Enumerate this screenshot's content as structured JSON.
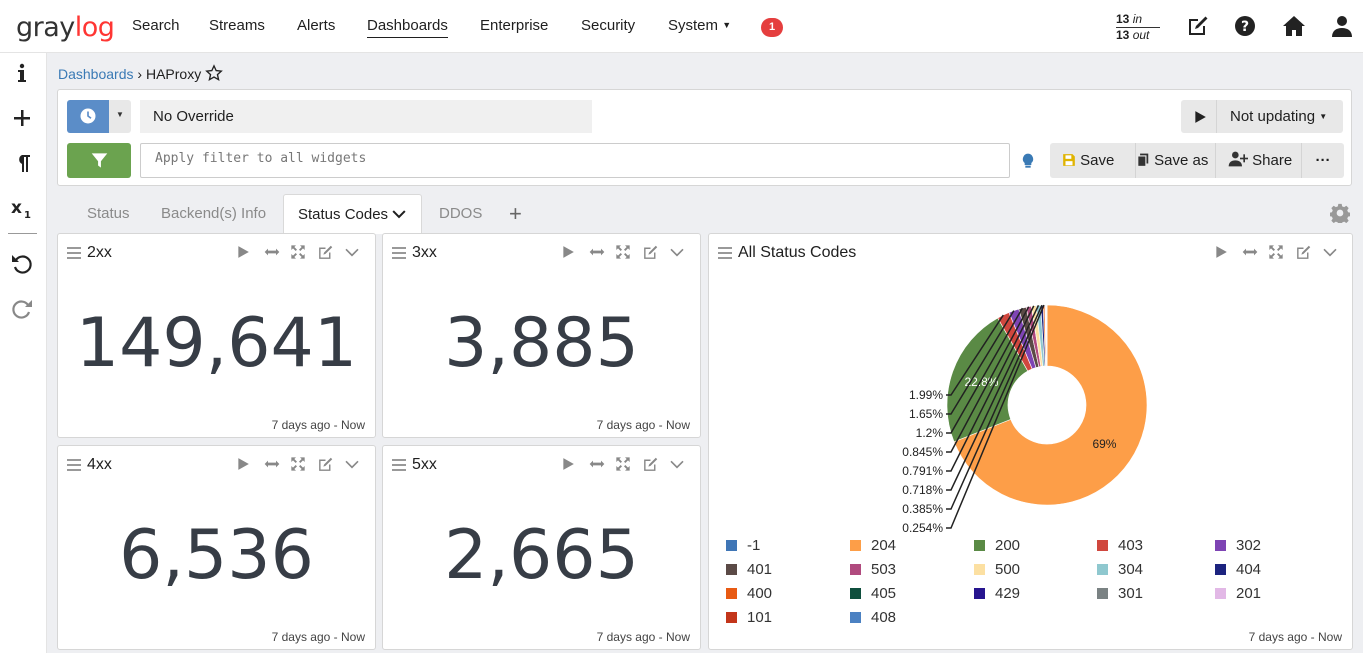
{
  "nav": {
    "logo": "graylog",
    "links": [
      "Search",
      "Streams",
      "Alerts",
      "Dashboards",
      "Enterprise",
      "Security",
      "System"
    ],
    "notification_count": "1",
    "throughput_in": "13",
    "throughput_in_label": "in",
    "throughput_out": "13",
    "throughput_out_label": "out"
  },
  "breadcrumb": {
    "parent": "Dashboards",
    "separator": "›",
    "current": "HAProxy"
  },
  "query": {
    "timerange": "No Override",
    "refresh": "Not updating",
    "filter_placeholder": "Apply filter to all widgets",
    "save": "Save",
    "save_as": "Save as",
    "share": "Share",
    "more": "···"
  },
  "tabs": [
    {
      "label": "Status"
    },
    {
      "label": "Backend(s) Info"
    },
    {
      "label": "Status Codes"
    },
    {
      "label": "DDOS"
    }
  ],
  "tabs_add": "+",
  "widgets": [
    {
      "title": "2xx",
      "value": "149,641",
      "range": "7 days ago - Now"
    },
    {
      "title": "3xx",
      "value": "3,885",
      "range": "7 days ago - Now"
    },
    {
      "title": "4xx",
      "value": "6,536",
      "range": "7 days ago - Now"
    },
    {
      "title": "5xx",
      "value": "2,665",
      "range": "7 days ago - Now"
    }
  ],
  "pie_widget": {
    "title": "All Status Codes",
    "range": "7 days ago - Now"
  },
  "chart_data": {
    "type": "pie",
    "title": "All Status Codes",
    "slices": [
      {
        "label": "204",
        "percent": 69,
        "color": "#fd9e48"
      },
      {
        "label": "200",
        "percent": 22.8,
        "color": "#5a8a45"
      },
      {
        "label": "403",
        "percent": 1.99,
        "color": "#d0473e"
      },
      {
        "label": "302",
        "percent": 1.65,
        "color": "#7e44b4"
      },
      {
        "label": "401",
        "percent": 1.2,
        "color": "#5b4a46"
      },
      {
        "label": "503",
        "percent": 0.845,
        "color": "#b04a7e"
      },
      {
        "label": "500",
        "percent": 0.791,
        "color": "#fce0a2"
      },
      {
        "label": "304",
        "percent": 0.718,
        "color": "#8fc8cf"
      },
      {
        "label": "404",
        "percent": 0.385,
        "color": "#1c237f"
      },
      {
        "label": "400",
        "percent": 0.254,
        "color": "#e85a13"
      },
      {
        "label": "405",
        "percent": 0.1,
        "color": "#0f4f3d"
      },
      {
        "label": "429",
        "percent": 0.08,
        "color": "#27158f"
      },
      {
        "label": "301",
        "percent": 0.07,
        "color": "#7a8283"
      },
      {
        "label": "201",
        "percent": 0.05,
        "color": "#e2b8e6"
      },
      {
        "label": "101",
        "percent": 0.03,
        "color": "#c3351a"
      },
      {
        "label": "408",
        "percent": 0.02,
        "color": "#4b81c2"
      },
      {
        "label": "-1",
        "percent": 0.01,
        "color": "#3f76b6"
      }
    ],
    "visible_labels": [
      "69%",
      "22.8%",
      "1.99%",
      "1.65%",
      "1.2%",
      "0.845%",
      "0.791%",
      "0.718%",
      "0.385%",
      "0.254%"
    ],
    "legend": [
      {
        "label": "-1",
        "color": "#3f76b6"
      },
      {
        "label": "204",
        "color": "#fd9e48"
      },
      {
        "label": "200",
        "color": "#5a8a45"
      },
      {
        "label": "403",
        "color": "#d0473e"
      },
      {
        "label": "302",
        "color": "#7e44b4"
      },
      {
        "label": "401",
        "color": "#5b4a46"
      },
      {
        "label": "503",
        "color": "#b04a7e"
      },
      {
        "label": "500",
        "color": "#fce0a2"
      },
      {
        "label": "304",
        "color": "#8fc8cf"
      },
      {
        "label": "404",
        "color": "#1c237f"
      },
      {
        "label": "400",
        "color": "#e85a13"
      },
      {
        "label": "405",
        "color": "#0f4f3d"
      },
      {
        "label": "429",
        "color": "#27158f"
      },
      {
        "label": "301",
        "color": "#7a8283"
      },
      {
        "label": "201",
        "color": "#e2b8e6"
      },
      {
        "label": "101",
        "color": "#c3351a"
      },
      {
        "label": "408",
        "color": "#4b81c2"
      }
    ]
  }
}
